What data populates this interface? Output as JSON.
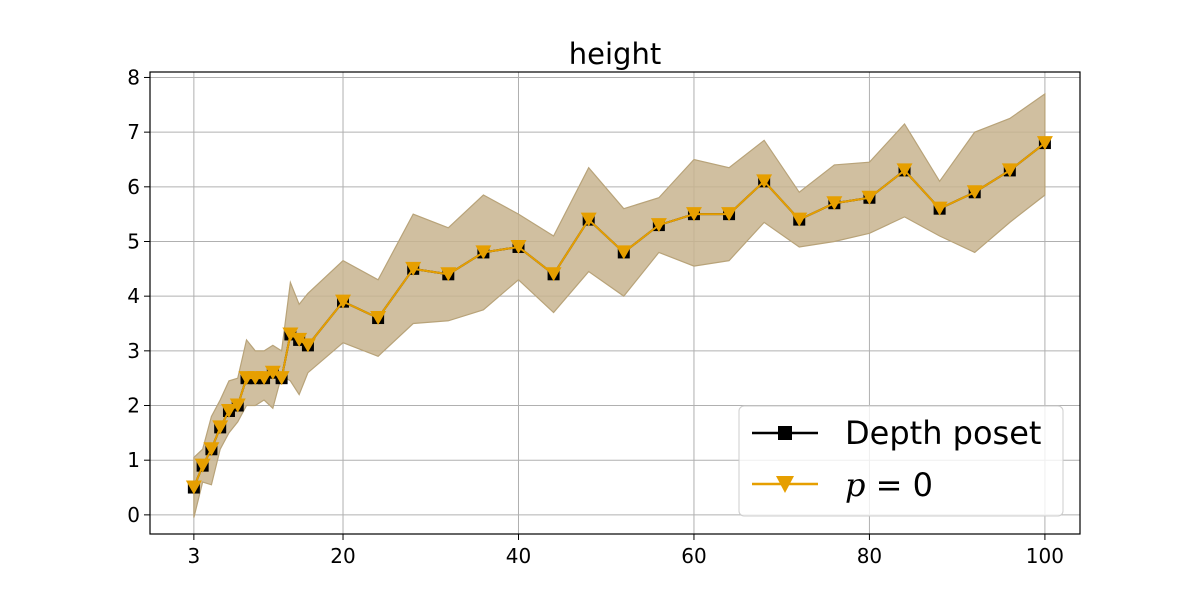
{
  "chart_data": {
    "type": "line",
    "title": "height",
    "xlabel": "",
    "ylabel": "",
    "xlim": [
      -2,
      104
    ],
    "ylim": [
      -0.35,
      8.1
    ],
    "xticks": [
      3,
      20,
      40,
      60,
      80,
      100
    ],
    "yticks": [
      0,
      1,
      2,
      3,
      4,
      5,
      6,
      7,
      8
    ],
    "grid": true,
    "legend_position": "bottom-right",
    "x": [
      3,
      4,
      5,
      6,
      7,
      8,
      9,
      10,
      11,
      12,
      13,
      14,
      15,
      16,
      20,
      24,
      28,
      32,
      36,
      40,
      44,
      48,
      52,
      56,
      60,
      64,
      68,
      72,
      76,
      80,
      84,
      88,
      92,
      96,
      100
    ],
    "band": {
      "color": "#c8b48f",
      "edge_color": "#b8a379",
      "lower": [
        -0.05,
        0.6,
        0.55,
        1.2,
        1.5,
        1.7,
        2.0,
        2.0,
        2.1,
        1.95,
        2.55,
        2.45,
        2.2,
        2.6,
        3.15,
        2.9,
        3.5,
        3.55,
        3.75,
        4.3,
        3.7,
        4.45,
        4.0,
        4.8,
        4.55,
        4.65,
        5.35,
        4.9,
        5.0,
        5.15,
        5.45,
        5.1,
        4.8,
        5.35,
        5.85
      ],
      "upper": [
        1.05,
        1.2,
        1.8,
        2.1,
        2.45,
        2.5,
        3.2,
        3.0,
        3.0,
        3.1,
        3.0,
        4.25,
        3.85,
        4.05,
        4.65,
        4.3,
        5.5,
        5.25,
        5.85,
        5.5,
        5.1,
        6.35,
        5.6,
        5.8,
        6.5,
        6.35,
        6.85,
        5.9,
        6.4,
        6.45,
        7.15,
        6.1,
        7.0,
        7.25,
        7.7
      ]
    },
    "series": [
      {
        "name": "Depth poset",
        "color": "#000000",
        "marker": "square",
        "values": [
          0.5,
          0.9,
          1.2,
          1.6,
          1.9,
          2.0,
          2.5,
          2.5,
          2.5,
          2.6,
          2.5,
          3.3,
          3.2,
          3.1,
          3.9,
          3.6,
          4.5,
          4.4,
          4.8,
          4.9,
          4.4,
          5.4,
          4.8,
          5.3,
          5.5,
          5.5,
          6.1,
          5.4,
          5.7,
          5.8,
          6.3,
          5.6,
          5.9,
          6.3,
          6.8
        ]
      },
      {
        "name": "p = 0",
        "color": "#e69f00",
        "marker": "triangle-down",
        "values": [
          0.5,
          0.9,
          1.2,
          1.6,
          1.9,
          2.0,
          2.5,
          2.5,
          2.5,
          2.6,
          2.5,
          3.3,
          3.2,
          3.1,
          3.9,
          3.6,
          4.5,
          4.4,
          4.8,
          4.9,
          4.4,
          5.4,
          4.8,
          5.3,
          5.5,
          5.5,
          6.1,
          5.4,
          5.7,
          5.8,
          6.3,
          5.6,
          5.9,
          6.3,
          6.8
        ]
      }
    ],
    "legend": {
      "entries": [
        {
          "label": "Depth poset",
          "color": "#000000",
          "marker": "square"
        },
        {
          "label_var": "p",
          "label_rest": " = 0",
          "color": "#e69f00",
          "marker": "triangle-down"
        }
      ]
    }
  }
}
